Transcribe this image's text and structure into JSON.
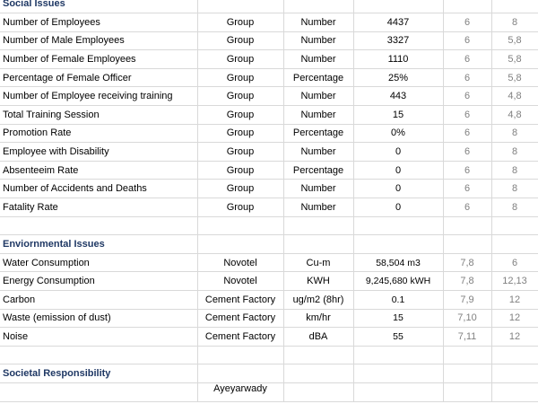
{
  "sections": {
    "social": "Social Issues",
    "environmental": "Enviornmental Issues",
    "societal": "Societal Responsibility"
  },
  "social_rows": [
    {
      "metric": "Number of Employees",
      "scope": "Group",
      "unit": "Number",
      "value": "4437",
      "gri": "6",
      "sdg": "8"
    },
    {
      "metric": "Number of Male Employees",
      "scope": "Group",
      "unit": "Number",
      "value": "3327",
      "gri": "6",
      "sdg": "5,8"
    },
    {
      "metric": "Number of Female Employees",
      "scope": "Group",
      "unit": "Number",
      "value": "1110",
      "gri": "6",
      "sdg": "5,8"
    },
    {
      "metric": "Percentage of Female Officer",
      "scope": "Group",
      "unit": "Percentage",
      "value": "25%",
      "gri": "6",
      "sdg": "5,8"
    },
    {
      "metric": "Number of Employee receiving training",
      "scope": "Group",
      "unit": "Number",
      "value": "443",
      "gri": "6",
      "sdg": "4,8"
    },
    {
      "metric": "Total Training Session",
      "scope": "Group",
      "unit": "Number",
      "value": "15",
      "gri": "6",
      "sdg": "4,8"
    },
    {
      "metric": "Promotion Rate",
      "scope": "Group",
      "unit": "Percentage",
      "value": "0%",
      "gri": "6",
      "sdg": "8"
    },
    {
      "metric": "Employee with Disability",
      "scope": "Group",
      "unit": "Number",
      "value": "0",
      "gri": "6",
      "sdg": "8"
    },
    {
      "metric": "Absenteeim Rate",
      "scope": "Group",
      "unit": "Percentage",
      "value": "0",
      "gri": "6",
      "sdg": "8"
    },
    {
      "metric": "Number of Accidents and Deaths",
      "scope": "Group",
      "unit": "Number",
      "value": "0",
      "gri": "6",
      "sdg": "8"
    },
    {
      "metric": "Fatality Rate",
      "scope": "Group",
      "unit": "Number",
      "value": "0",
      "gri": "6",
      "sdg": "8"
    }
  ],
  "env_rows": [
    {
      "metric": "Water Consumption",
      "scope": "Novotel",
      "unit": "Cu-m",
      "value": "58,504 m3",
      "gri": "7,8",
      "sdg": "6"
    },
    {
      "metric": "Energy Consumption",
      "scope": "Novotel",
      "unit": "KWH",
      "value": "9,245,680 kWH",
      "gri": "7,8",
      "sdg": "12,13"
    },
    {
      "metric": "Carbon",
      "scope": "Cement Factory",
      "unit": "ug/m2 (8hr)",
      "value": "0.1",
      "gri": "7,9",
      "sdg": "12"
    },
    {
      "metric": "Waste (emission of dust)",
      "scope": "Cement Factory",
      "unit": "km/hr",
      "value": "15",
      "gri": "7,10",
      "sdg": "12"
    },
    {
      "metric": "Noise",
      "scope": "Cement Factory",
      "unit": "dBA",
      "value": "55",
      "gri": "7,11",
      "sdg": "12"
    }
  ],
  "societal_partial": {
    "scope": "Ayeyarwady"
  }
}
